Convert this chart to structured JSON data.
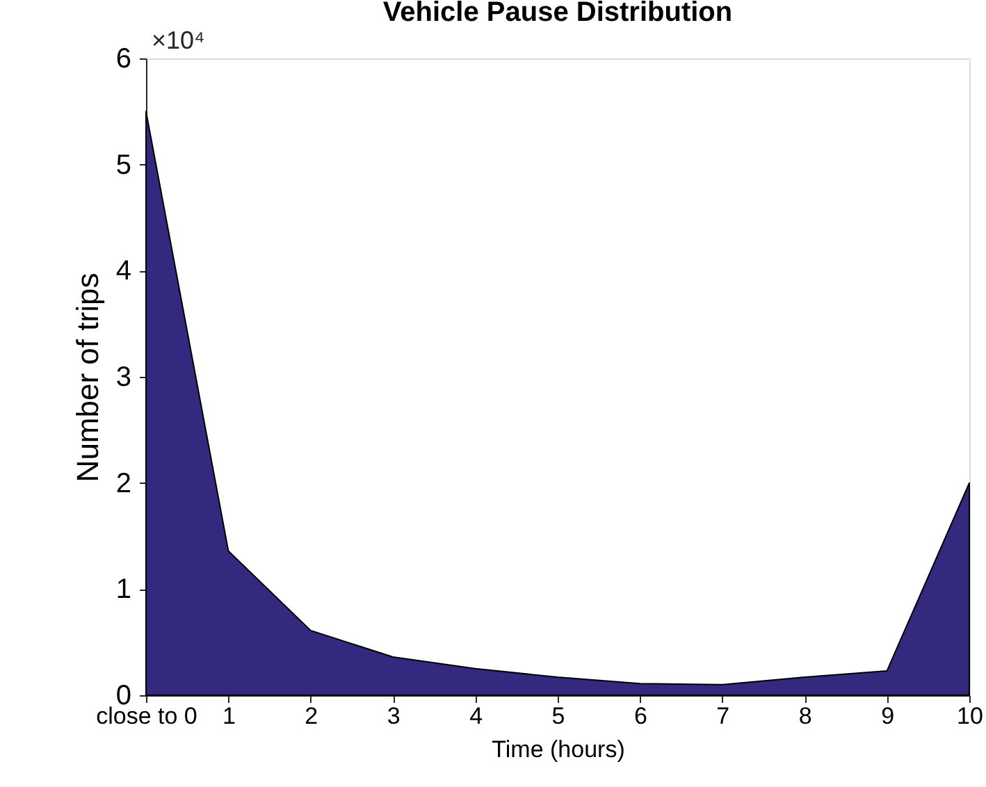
{
  "chart_data": {
    "type": "area",
    "title": "Vehicle Pause Distribution",
    "xlabel": "Time (hours)",
    "ylabel": "Number of trips",
    "x": [
      0,
      1,
      2,
      3,
      4,
      5,
      6,
      7,
      8,
      9,
      10
    ],
    "series": [
      {
        "color": "#33297f",
        "values": [
          5.5,
          1.36,
          0.61,
          0.36,
          0.25,
          0.17,
          0.11,
          0.1,
          0.17,
          0.23,
          2.0
        ]
      }
    ],
    "xlim": [
      0,
      10
    ],
    "ylim": [
      0,
      6
    ],
    "xticks": [
      {
        "value": 0,
        "label": "close to 0"
      },
      1,
      2,
      3,
      4,
      5,
      6,
      7,
      8,
      9,
      10
    ],
    "yticks": [
      0,
      1,
      2,
      3,
      4,
      5,
      6
    ],
    "annotations": [
      "×10⁴"
    ],
    "grid": false
  }
}
